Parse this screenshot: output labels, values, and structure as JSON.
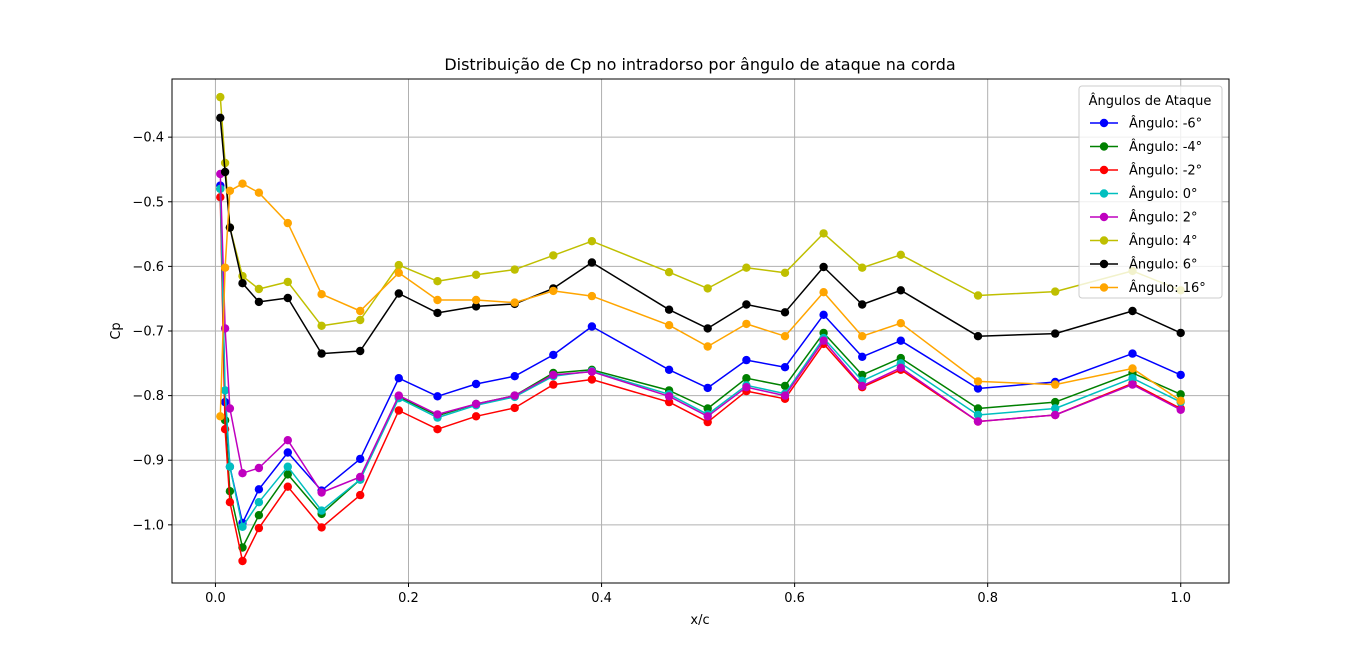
{
  "chart_data": {
    "type": "line",
    "title": "Distribuição de Cp no intradorso por ângulo de ataque na corda",
    "xlabel": "x/c",
    "ylabel": "Cp",
    "xlim": [
      -0.045,
      1.05
    ],
    "ylim": [
      -1.09,
      -0.31
    ],
    "xticks": [
      0.0,
      0.2,
      0.4,
      0.6,
      0.8,
      1.0
    ],
    "xtick_labels": [
      "0.0",
      "0.2",
      "0.4",
      "0.6",
      "0.8",
      "1.0"
    ],
    "yticks": [
      -1.0,
      -0.9,
      -0.8,
      -0.7,
      -0.6,
      -0.5,
      -0.4
    ],
    "ytick_labels": [
      "−1.0",
      "−0.9",
      "−0.8",
      "−0.7",
      "−0.6",
      "−0.5",
      "−0.4"
    ],
    "grid": true,
    "legend_title": "Ângulos de Ataque",
    "legend_position": "top-right",
    "x": [
      0.005,
      0.01,
      0.015,
      0.028,
      0.045,
      0.075,
      0.11,
      0.15,
      0.19,
      0.23,
      0.27,
      0.31,
      0.35,
      0.39,
      0.47,
      0.51,
      0.55,
      0.59,
      0.63,
      0.67,
      0.71,
      0.79,
      0.87,
      0.95,
      1.0
    ],
    "series": [
      {
        "name": "Ângulo: -6°",
        "color": "#0000ff",
        "values": [
          -0.475,
          -0.81,
          -0.91,
          -0.997,
          -0.945,
          -0.888,
          -0.947,
          -0.898,
          -0.773,
          -0.801,
          -0.782,
          -0.77,
          -0.737,
          -0.693,
          -0.76,
          -0.788,
          -0.745,
          -0.756,
          -0.675,
          -0.74,
          -0.715,
          -0.789,
          -0.779,
          -0.735,
          -0.768
        ]
      },
      {
        "name": "Ângulo: -4°",
        "color": "#008000",
        "values": [
          -0.48,
          -0.838,
          -0.948,
          -1.035,
          -0.985,
          -0.922,
          -0.983,
          -0.93,
          -0.802,
          -0.831,
          -0.813,
          -0.8,
          -0.765,
          -0.76,
          -0.792,
          -0.82,
          -0.773,
          -0.785,
          -0.703,
          -0.768,
          -0.742,
          -0.82,
          -0.81,
          -0.765,
          -0.798
        ]
      },
      {
        "name": "Ângulo: -2°",
        "color": "#ff0000",
        "values": [
          -0.493,
          -0.852,
          -0.965,
          -1.056,
          -1.005,
          -0.941,
          -1.004,
          -0.954,
          -0.823,
          -0.852,
          -0.832,
          -0.819,
          -0.783,
          -0.775,
          -0.81,
          -0.841,
          -0.793,
          -0.805,
          -0.72,
          -0.787,
          -0.76,
          -0.84,
          -0.83,
          -0.781,
          -0.82
        ]
      },
      {
        "name": "Ângulo: 0°",
        "color": "#00bfbf",
        "values": [
          -0.48,
          -0.792,
          -0.91,
          -1.003,
          -0.965,
          -0.91,
          -0.978,
          -0.93,
          -0.804,
          -0.834,
          -0.815,
          -0.802,
          -0.77,
          -0.762,
          -0.798,
          -0.829,
          -0.784,
          -0.797,
          -0.711,
          -0.777,
          -0.75,
          -0.83,
          -0.82,
          -0.773,
          -0.81
        ]
      },
      {
        "name": "Ângulo: 2°",
        "color": "#bf00bf",
        "values": [
          -0.457,
          -0.696,
          -0.82,
          -0.92,
          -0.912,
          -0.869,
          -0.95,
          -0.926,
          -0.8,
          -0.829,
          -0.813,
          -0.8,
          -0.768,
          -0.763,
          -0.801,
          -0.832,
          -0.787,
          -0.8,
          -0.715,
          -0.785,
          -0.757,
          -0.84,
          -0.83,
          -0.783,
          -0.822
        ]
      },
      {
        "name": "Ângulo: 4°",
        "color": "#bfbf00",
        "values": [
          -0.338,
          -0.44,
          -0.54,
          -0.615,
          -0.635,
          -0.624,
          -0.692,
          -0.683,
          -0.598,
          -0.623,
          -0.613,
          -0.605,
          -0.583,
          -0.561,
          -0.609,
          -0.634,
          -0.602,
          -0.61,
          -0.549,
          -0.602,
          -0.582,
          -0.645,
          -0.639,
          -0.607,
          -0.637
        ]
      },
      {
        "name": "Ângulo: 6°",
        "color": "#000000",
        "values": [
          -0.37,
          -0.454,
          -0.54,
          -0.626,
          -0.655,
          -0.649,
          -0.735,
          -0.731,
          -0.642,
          -0.672,
          -0.662,
          -0.658,
          -0.634,
          -0.594,
          -0.667,
          -0.696,
          -0.659,
          -0.671,
          -0.601,
          -0.659,
          -0.637,
          -0.708,
          -0.704,
          -0.669,
          -0.703
        ]
      },
      {
        "name": "Ângulo: 16°",
        "color": "#ffa500",
        "values": [
          -0.832,
          -0.602,
          -0.483,
          -0.472,
          -0.486,
          -0.533,
          -0.643,
          -0.669,
          -0.61,
          -0.652,
          -0.652,
          -0.656,
          -0.638,
          -0.646,
          -0.691,
          -0.724,
          -0.689,
          -0.708,
          -0.64,
          -0.708,
          -0.688,
          -0.778,
          -0.783,
          -0.758,
          -0.808
        ]
      }
    ]
  }
}
